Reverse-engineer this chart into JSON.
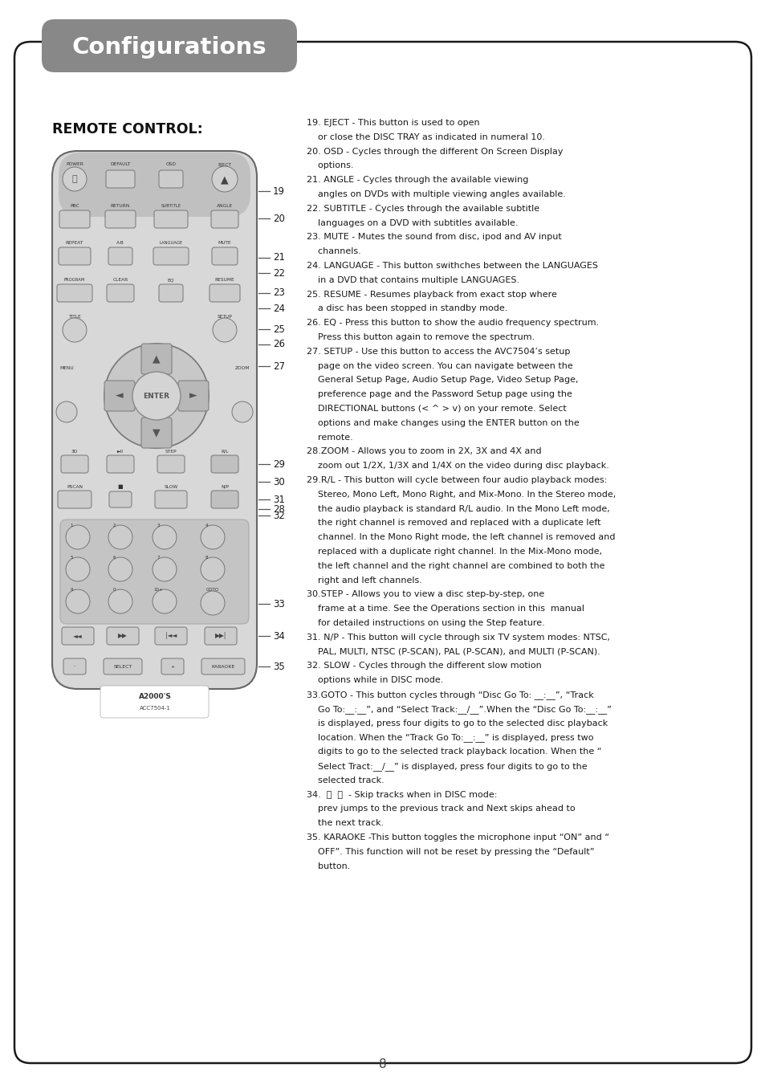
{
  "title": "Configurations",
  "title_bg": "#888888",
  "title_color": "#ffffff",
  "page_number": "8",
  "section_title": "REMOTE CONTROL:",
  "right_text_lines": [
    [
      "19. EJECT - This button is used to open",
      false
    ],
    [
      "    or close the DISC TRAY as indicated in numeral 10.",
      false
    ],
    [
      "20. OSD - Cycles through the different On Screen Display",
      false
    ],
    [
      "    options.",
      false
    ],
    [
      "21. ANGLE - Cycles through the available viewing",
      false
    ],
    [
      "    angles on DVDs with multiple viewing angles available.",
      false
    ],
    [
      "22. SUBTITLE - Cycles through the available subtitle",
      false
    ],
    [
      "    languages on a DVD with subtitles available.",
      false
    ],
    [
      "23. MUTE - Mutes the sound from disc, ipod and AV input",
      false
    ],
    [
      "    channels.",
      false
    ],
    [
      "24. LANGUAGE - This button swithches between the LANGUAGES",
      false
    ],
    [
      "    in a DVD that contains multiple LANGUAGES.",
      false
    ],
    [
      "25. RESUME - Resumes playback from exact stop where",
      false
    ],
    [
      "    a disc has been stopped in standby mode.",
      false
    ],
    [
      "26. EQ - Press this button to show the audio frequency spectrum.",
      false
    ],
    [
      "    Press this button again to remove the spectrum.",
      false
    ],
    [
      "27. SETUP - Use this button to access the AVC7504’s setup",
      false
    ],
    [
      "    page on the video screen. You can navigate between the",
      false
    ],
    [
      "    General Setup Page, Audio Setup Page, Video Setup Page,",
      false
    ],
    [
      "    preference page and the Password Setup page using the",
      false
    ],
    [
      "    DIRECTIONAL buttons (< ^ > v) on your remote. Select",
      false
    ],
    [
      "    options and make changes using the ENTER button on the",
      false
    ],
    [
      "    remote.",
      false
    ],
    [
      "28.ZOOM - Allows you to zoom in 2X, 3X and 4X and",
      false
    ],
    [
      "    zoom out 1/2X, 1/3X and 1/4X on the video during disc playback.",
      false
    ],
    [
      "29.R/L - This button will cycle between four audio playback modes:",
      false
    ],
    [
      "    Stereo, Mono Left, Mono Right, and Mix-Mono. In the Stereo mode,",
      false
    ],
    [
      "    the audio playback is standard R/L audio. In the Mono Left mode,",
      false
    ],
    [
      "    the right channel is removed and replaced with a duplicate left",
      false
    ],
    [
      "    channel. In the Mono Right mode, the left channel is removed and",
      false
    ],
    [
      "    replaced with a duplicate right channel. In the Mix-Mono mode,",
      false
    ],
    [
      "    the left channel and the right channel are combined to both the",
      false
    ],
    [
      "    right and left channels.",
      false
    ],
    [
      "30.STEP - Allows you to view a disc step-by-step, one",
      false
    ],
    [
      "    frame at a time. See the Operations section in this  manual",
      false
    ],
    [
      "    for detailed instructions on using the Step feature.",
      false
    ],
    [
      "31. N/P - This button will cycle through six TV system modes: NTSC,",
      false
    ],
    [
      "    PAL, MULTI, NTSC (P-SCAN), PAL (P-SCAN), and MULTI (P-SCAN).",
      false
    ],
    [
      "32. SLOW - Cycles through the different slow motion",
      false
    ],
    [
      "    options while in DISC mode.",
      false
    ],
    [
      "33.GOTO - This button cycles through “Disc Go To: __:__”, “Track",
      false
    ],
    [
      "    Go To:__:__”, and “Select Track:__/__”.When the “Disc Go To:__:__”",
      false
    ],
    [
      "    is displayed, press four digits to go to the selected disc playback",
      false
    ],
    [
      "    location. When the “Track Go To:__:__” is displayed, press two",
      false
    ],
    [
      "    digits to go to the selected track playback location. When the “",
      false
    ],
    [
      "    Select Tract:__/__” is displayed, press four digits to go to the",
      false
    ],
    [
      "    selected track.",
      false
    ],
    [
      "34.  ⏮  ⏭  - Skip tracks when in DISC mode:",
      false
    ],
    [
      "    prev jumps to the previous track and Next skips ahead to",
      false
    ],
    [
      "    the next track.",
      false
    ],
    [
      "35. KARAOKE -This button toggles the microphone input “ON” and “",
      false
    ],
    [
      "    OFF”. This function will not be reset by pressing the “Default”",
      false
    ],
    [
      "    button.",
      false
    ]
  ],
  "bg_color": "#ffffff",
  "border_color": "#1a1a1a",
  "text_color": "#1a1a1a"
}
